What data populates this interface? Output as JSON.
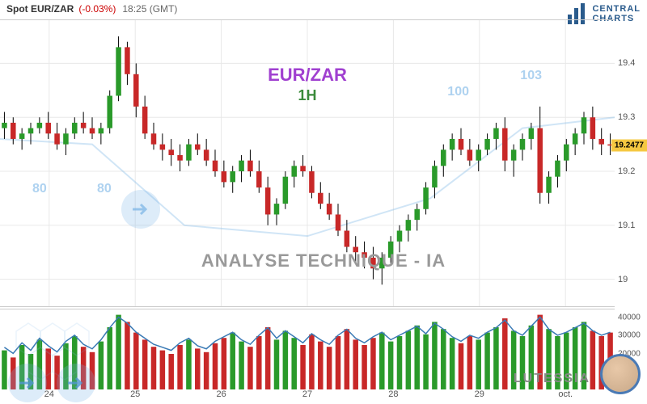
{
  "header": {
    "symbol": "Spot EUR/ZAR",
    "change": "(-0.03%)",
    "time": "18:25 (GMT)"
  },
  "logo": {
    "line1": "CENTRAL",
    "line2": "CHARTS"
  },
  "title": {
    "pair": "EUR/ZAR",
    "timeframe": "1H"
  },
  "subtitle": "ANALYSE TECHNIQUE - IA",
  "footer_brand": "LUTESSIA",
  "watermark_labels": {
    "left1": "80",
    "left2": "80",
    "right1": "100",
    "right2": "103"
  },
  "chart": {
    "type": "candlestick",
    "ylim": [
      18.95,
      19.48
    ],
    "yticks": [
      19.0,
      19.1,
      19.2,
      19.3,
      19.4
    ],
    "ytick_labels": [
      "19",
      "19.1",
      "19.2",
      "19.3",
      "19.4"
    ],
    "current_price": "19.2477",
    "current_price_y": 19.2477,
    "x_labels": [
      "24",
      "25",
      "26",
      "27",
      "28",
      "29",
      "oct."
    ],
    "x_positions": [
      0.08,
      0.22,
      0.36,
      0.5,
      0.64,
      0.78,
      0.92
    ],
    "background_color": "#ffffff",
    "grid_color": "#e8e8e8",
    "up_color": "#2a9a2a",
    "down_color": "#c82828",
    "wick_color": "#000000",
    "candles": [
      {
        "o": 19.28,
        "h": 19.31,
        "l": 19.26,
        "c": 19.29
      },
      {
        "o": 19.29,
        "h": 19.3,
        "l": 19.25,
        "c": 19.26
      },
      {
        "o": 19.26,
        "h": 19.28,
        "l": 19.24,
        "c": 19.27
      },
      {
        "o": 19.27,
        "h": 19.29,
        "l": 19.25,
        "c": 19.28
      },
      {
        "o": 19.28,
        "h": 19.3,
        "l": 19.27,
        "c": 19.29
      },
      {
        "o": 19.29,
        "h": 19.31,
        "l": 19.26,
        "c": 19.27
      },
      {
        "o": 19.27,
        "h": 19.29,
        "l": 19.24,
        "c": 19.25
      },
      {
        "o": 19.25,
        "h": 19.28,
        "l": 19.23,
        "c": 19.27
      },
      {
        "o": 19.27,
        "h": 19.3,
        "l": 19.26,
        "c": 19.29
      },
      {
        "o": 19.29,
        "h": 19.31,
        "l": 19.27,
        "c": 19.28
      },
      {
        "o": 19.28,
        "h": 19.3,
        "l": 19.26,
        "c": 19.27
      },
      {
        "o": 19.27,
        "h": 19.29,
        "l": 19.25,
        "c": 19.28
      },
      {
        "o": 19.28,
        "h": 19.35,
        "l": 19.27,
        "c": 19.34
      },
      {
        "o": 19.34,
        "h": 19.45,
        "l": 19.33,
        "c": 19.43
      },
      {
        "o": 19.43,
        "h": 19.44,
        "l": 19.36,
        "c": 19.38
      },
      {
        "o": 19.38,
        "h": 19.4,
        "l": 19.3,
        "c": 19.32
      },
      {
        "o": 19.32,
        "h": 19.34,
        "l": 19.26,
        "c": 19.27
      },
      {
        "o": 19.27,
        "h": 19.29,
        "l": 19.24,
        "c": 19.25
      },
      {
        "o": 19.25,
        "h": 19.27,
        "l": 19.22,
        "c": 19.24
      },
      {
        "o": 19.24,
        "h": 19.26,
        "l": 19.21,
        "c": 19.23
      },
      {
        "o": 19.23,
        "h": 19.25,
        "l": 19.2,
        "c": 19.22
      },
      {
        "o": 19.22,
        "h": 19.26,
        "l": 19.21,
        "c": 19.25
      },
      {
        "o": 19.25,
        "h": 19.27,
        "l": 19.23,
        "c": 19.24
      },
      {
        "o": 19.24,
        "h": 19.26,
        "l": 19.21,
        "c": 19.22
      },
      {
        "o": 19.22,
        "h": 19.24,
        "l": 19.19,
        "c": 19.2
      },
      {
        "o": 19.2,
        "h": 19.22,
        "l": 19.17,
        "c": 19.18
      },
      {
        "o": 19.18,
        "h": 19.21,
        "l": 19.16,
        "c": 19.2
      },
      {
        "o": 19.2,
        "h": 19.23,
        "l": 19.18,
        "c": 19.22
      },
      {
        "o": 19.22,
        "h": 19.24,
        "l": 19.19,
        "c": 19.2
      },
      {
        "o": 19.2,
        "h": 19.22,
        "l": 19.16,
        "c": 19.17
      },
      {
        "o": 19.17,
        "h": 19.19,
        "l": 19.1,
        "c": 19.12
      },
      {
        "o": 19.12,
        "h": 19.15,
        "l": 19.1,
        "c": 19.14
      },
      {
        "o": 19.14,
        "h": 19.2,
        "l": 19.13,
        "c": 19.19
      },
      {
        "o": 19.19,
        "h": 19.22,
        "l": 19.17,
        "c": 19.21
      },
      {
        "o": 19.21,
        "h": 19.23,
        "l": 19.19,
        "c": 19.2
      },
      {
        "o": 19.2,
        "h": 19.21,
        "l": 19.15,
        "c": 19.16
      },
      {
        "o": 19.16,
        "h": 19.18,
        "l": 19.13,
        "c": 19.14
      },
      {
        "o": 19.14,
        "h": 19.16,
        "l": 19.11,
        "c": 19.12
      },
      {
        "o": 19.12,
        "h": 19.14,
        "l": 19.08,
        "c": 19.09
      },
      {
        "o": 19.09,
        "h": 19.11,
        "l": 19.05,
        "c": 19.06
      },
      {
        "o": 19.06,
        "h": 19.08,
        "l": 19.03,
        "c": 19.05
      },
      {
        "o": 19.05,
        "h": 19.07,
        "l": 19.02,
        "c": 19.04
      },
      {
        "o": 19.04,
        "h": 19.06,
        "l": 19.0,
        "c": 19.02
      },
      {
        "o": 19.02,
        "h": 19.05,
        "l": 18.99,
        "c": 19.04
      },
      {
        "o": 19.04,
        "h": 19.08,
        "l": 19.03,
        "c": 19.07
      },
      {
        "o": 19.07,
        "h": 19.1,
        "l": 19.05,
        "c": 19.09
      },
      {
        "o": 19.09,
        "h": 19.12,
        "l": 19.07,
        "c": 19.11
      },
      {
        "o": 19.11,
        "h": 19.14,
        "l": 19.09,
        "c": 19.13
      },
      {
        "o": 19.13,
        "h": 19.18,
        "l": 19.12,
        "c": 19.17
      },
      {
        "o": 19.17,
        "h": 19.22,
        "l": 19.15,
        "c": 19.21
      },
      {
        "o": 19.21,
        "h": 19.25,
        "l": 19.19,
        "c": 19.24
      },
      {
        "o": 19.24,
        "h": 19.27,
        "l": 19.22,
        "c": 19.26
      },
      {
        "o": 19.26,
        "h": 19.28,
        "l": 19.23,
        "c": 19.24
      },
      {
        "o": 19.24,
        "h": 19.26,
        "l": 19.21,
        "c": 19.22
      },
      {
        "o": 19.22,
        "h": 19.25,
        "l": 19.2,
        "c": 19.24
      },
      {
        "o": 19.24,
        "h": 19.27,
        "l": 19.23,
        "c": 19.26
      },
      {
        "o": 19.26,
        "h": 19.29,
        "l": 19.24,
        "c": 19.28
      },
      {
        "o": 19.28,
        "h": 19.3,
        "l": 19.2,
        "c": 19.22
      },
      {
        "o": 19.22,
        "h": 19.25,
        "l": 19.19,
        "c": 19.24
      },
      {
        "o": 19.24,
        "h": 19.27,
        "l": 19.22,
        "c": 19.26
      },
      {
        "o": 19.26,
        "h": 19.29,
        "l": 19.24,
        "c": 19.28
      },
      {
        "o": 19.28,
        "h": 19.32,
        "l": 19.14,
        "c": 19.16
      },
      {
        "o": 19.16,
        "h": 19.2,
        "l": 19.14,
        "c": 19.19
      },
      {
        "o": 19.19,
        "h": 19.23,
        "l": 19.17,
        "c": 19.22
      },
      {
        "o": 19.22,
        "h": 19.26,
        "l": 19.2,
        "c": 19.25
      },
      {
        "o": 19.25,
        "h": 19.28,
        "l": 19.23,
        "c": 19.27
      },
      {
        "o": 19.27,
        "h": 19.31,
        "l": 19.25,
        "c": 19.3
      },
      {
        "o": 19.3,
        "h": 19.32,
        "l": 19.24,
        "c": 19.26
      },
      {
        "o": 19.26,
        "h": 19.28,
        "l": 19.23,
        "c": 19.25
      },
      {
        "o": 19.25,
        "h": 19.27,
        "l": 19.23,
        "c": 19.2477
      }
    ]
  },
  "volume": {
    "ylim": [
      0,
      45000
    ],
    "yticks": [
      20000,
      30000,
      40000
    ],
    "ytick_labels": [
      "20000",
      "30000",
      "40000"
    ],
    "line_color": "#3a7ab5",
    "up_color": "#2a9a2a",
    "down_color": "#c82828",
    "bars": [
      22000,
      18000,
      25000,
      20000,
      28000,
      23000,
      19000,
      26000,
      30000,
      24000,
      21000,
      27000,
      35000,
      42000,
      38000,
      32000,
      28000,
      24000,
      22000,
      20000,
      25000,
      28000,
      23000,
      21000,
      26000,
      29000,
      32000,
      27000,
      24000,
      30000,
      35000,
      28000,
      33000,
      29000,
      25000,
      31000,
      27000,
      24000,
      30000,
      34000,
      28000,
      25000,
      29000,
      32000,
      27000,
      30000,
      33000,
      36000,
      31000,
      38000,
      34000,
      29000,
      26000,
      30000,
      28000,
      32000,
      35000,
      40000,
      33000,
      30000,
      36000,
      42000,
      34000,
      30000,
      32000,
      35000,
      38000,
      33000,
      30000,
      32000
    ]
  }
}
